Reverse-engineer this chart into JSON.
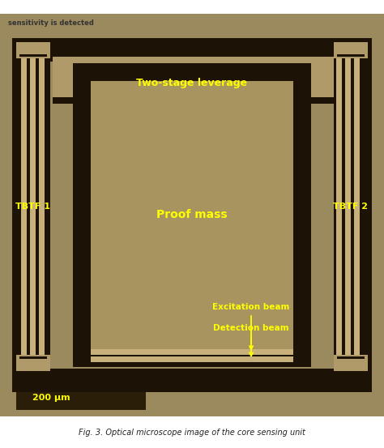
{
  "figsize": [
    4.74,
    5.53
  ],
  "dpi": 100,
  "bg_color": "#9b8a5e",
  "dark_color": "#1c1206",
  "tan_color": "#b09a6a",
  "beam_light": "#c8b07a",
  "beam_dark_gap": "#3a2a10",
  "caption_color": "#222222",
  "label_color": "#ffff00",
  "labels": {
    "two_stage": "Two-stage leverage",
    "proof_mass": "Proof mass",
    "tbtf1": "TBTF 1",
    "tbtf2": "TBTF 2",
    "excitation": "Excitation beam",
    "detection": "Detection beam",
    "scale": "200 μm"
  },
  "title_text": "Fig. 3. Optical microscope image of the core sensing unit"
}
